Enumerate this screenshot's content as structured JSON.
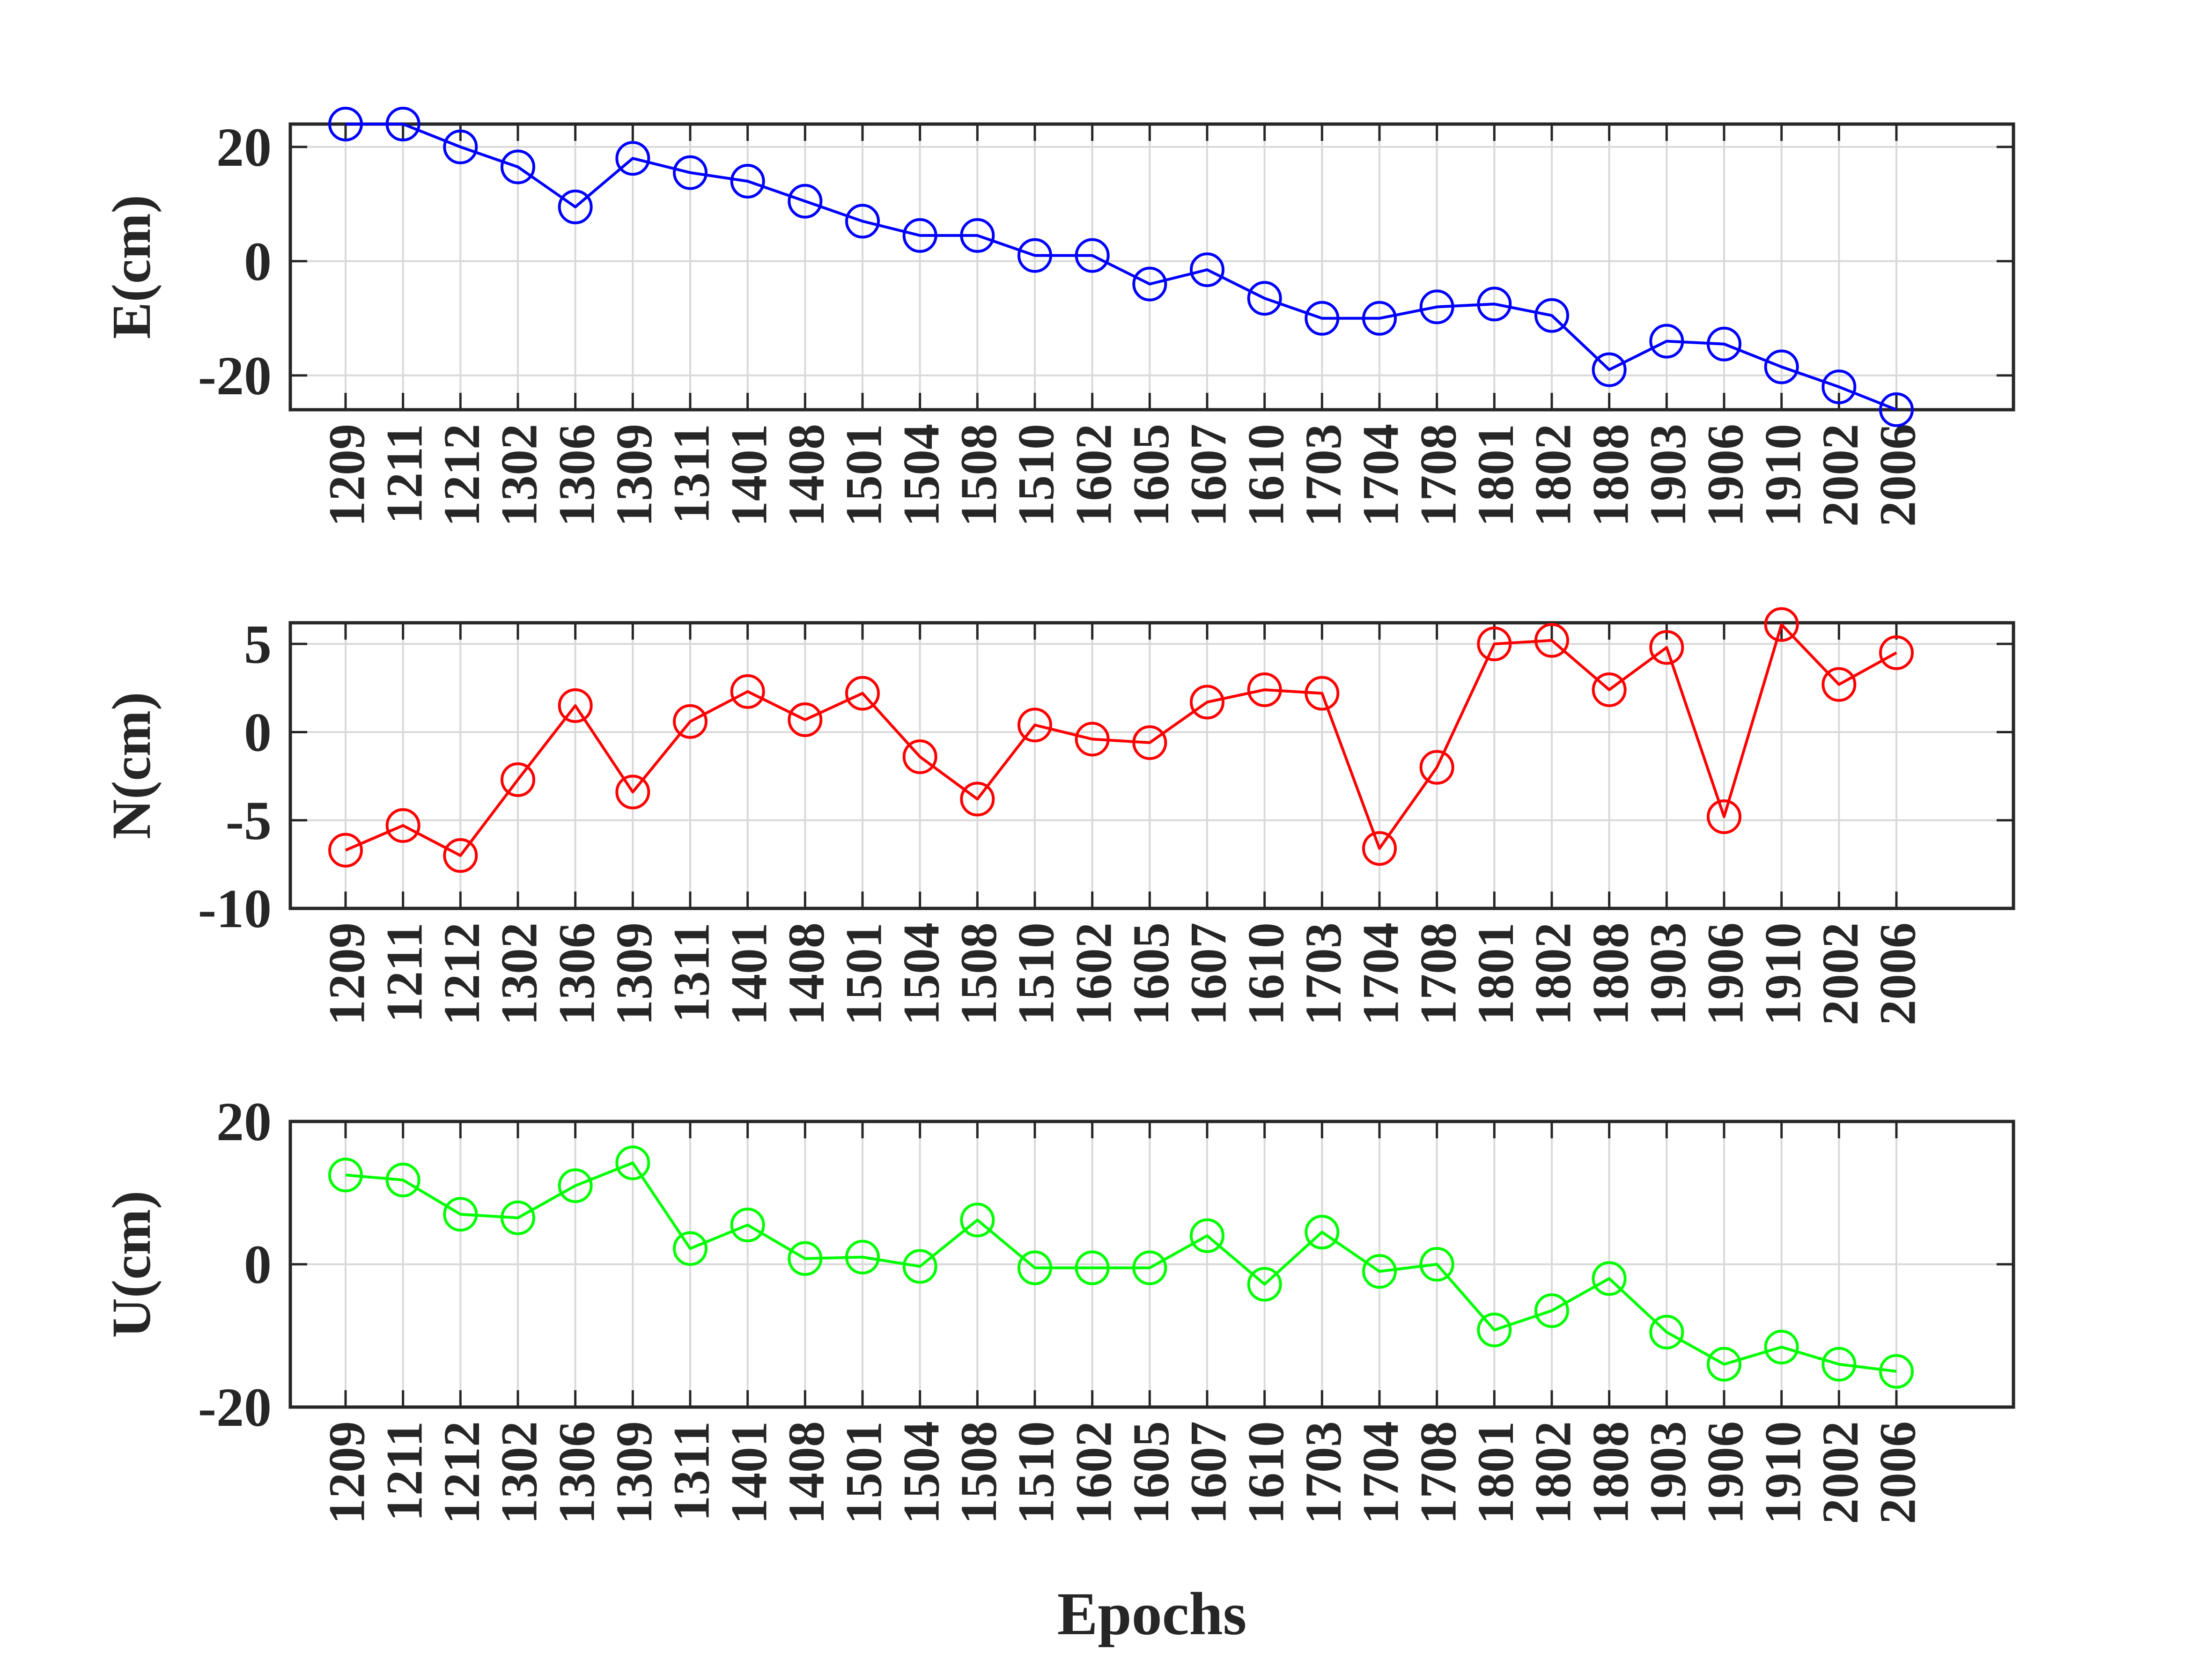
{
  "figure": {
    "xlabel": "Epochs"
  },
  "chart_data": [
    {
      "type": "line",
      "ylabel": "E(cm)",
      "categories": [
        "1209",
        "1211",
        "1212",
        "1302",
        "1306",
        "1309",
        "1311",
        "1401",
        "1408",
        "1501",
        "1504",
        "1508",
        "1510",
        "1602",
        "1605",
        "1607",
        "1610",
        "1703",
        "1704",
        "1708",
        "1801",
        "1802",
        "1808",
        "1903",
        "1906",
        "1910",
        "2002",
        "2006"
      ],
      "yticks": [
        -20,
        0,
        20
      ],
      "ylim": [
        -26,
        24
      ],
      "grid": true,
      "series": [
        {
          "color": "#0000FF",
          "marker": "circle",
          "values": [
            24,
            24,
            20,
            16.5,
            9.5,
            18,
            15.5,
            14,
            10.5,
            7,
            4.5,
            4.5,
            1,
            1,
            -4,
            -1.5,
            -6.5,
            -10,
            -10,
            -8,
            -7.5,
            -9.5,
            -19,
            -14,
            -14.5,
            -18.5,
            -22,
            -26
          ]
        }
      ]
    },
    {
      "type": "line",
      "ylabel": "N(cm)",
      "categories": [
        "1209",
        "1211",
        "1212",
        "1302",
        "1306",
        "1309",
        "1311",
        "1401",
        "1408",
        "1501",
        "1504",
        "1508",
        "1510",
        "1602",
        "1605",
        "1607",
        "1610",
        "1703",
        "1704",
        "1708",
        "1801",
        "1802",
        "1808",
        "1903",
        "1906",
        "1910",
        "2002",
        "2006"
      ],
      "yticks": [
        -10,
        -5,
        0,
        5
      ],
      "ylim": [
        -10,
        6.2
      ],
      "grid": true,
      "series": [
        {
          "color": "#FF0000",
          "marker": "circle",
          "values": [
            -6.7,
            -5.3,
            -7,
            -2.7,
            1.5,
            -3.4,
            0.6,
            2.3,
            0.7,
            2.2,
            -1.4,
            -3.8,
            0.4,
            -0.4,
            -0.6,
            1.7,
            2.4,
            2.2,
            -6.6,
            -2,
            5,
            5.2,
            2.4,
            4.8,
            -4.8,
            6.1,
            2.7,
            4.5
          ]
        }
      ]
    },
    {
      "type": "line",
      "ylabel": "U(cm)",
      "categories": [
        "1209",
        "1211",
        "1212",
        "1302",
        "1306",
        "1309",
        "1311",
        "1401",
        "1408",
        "1501",
        "1504",
        "1508",
        "1510",
        "1602",
        "1605",
        "1607",
        "1610",
        "1703",
        "1704",
        "1708",
        "1801",
        "1802",
        "1808",
        "1903",
        "1906",
        "1910",
        "2002",
        "2006"
      ],
      "yticks": [
        -20,
        0,
        20
      ],
      "ylim": [
        -20,
        20
      ],
      "grid": true,
      "series": [
        {
          "color": "#00FF00",
          "marker": "circle",
          "values": [
            12.5,
            11.8,
            7,
            6.5,
            11,
            14.2,
            2.2,
            5.5,
            0.8,
            1,
            -0.3,
            6.2,
            -0.5,
            -0.5,
            -0.5,
            4,
            -2.8,
            4.5,
            -1,
            0,
            -9.2,
            -6.5,
            -2,
            -9.5,
            -14,
            -11.6,
            -14,
            -15
          ]
        }
      ]
    }
  ]
}
